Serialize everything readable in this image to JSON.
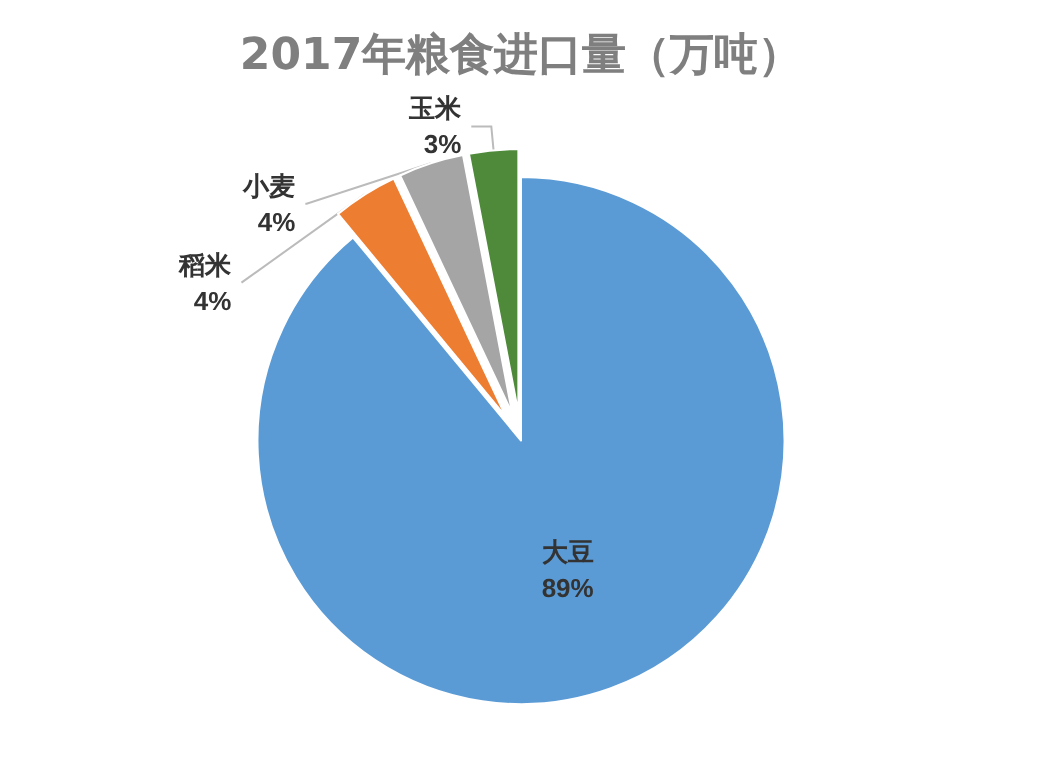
{
  "chart_data": {
    "type": "pie",
    "title": "2017年粮食进口量（万吨）",
    "categories": [
      "大豆",
      "稻米",
      "小麦",
      "玉米"
    ],
    "values": [
      89,
      4,
      4,
      3
    ],
    "colors": [
      "#5b9bd5",
      "#ed7d31",
      "#a5a5a5",
      "#4e8a3a"
    ],
    "value_labels": [
      "89%",
      "4%",
      "4%",
      "3%"
    ],
    "legend": false
  }
}
